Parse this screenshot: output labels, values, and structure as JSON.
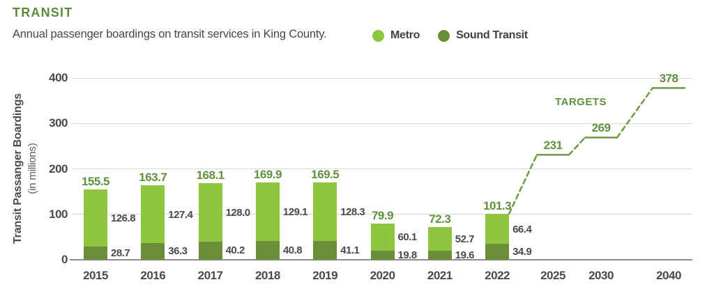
{
  "header": {
    "title": "TRANSIT",
    "subtitle": "Annual passenger boardings on transit services in King County."
  },
  "chart_data": {
    "type": "bar",
    "stacked": true,
    "categories": [
      "2015",
      "2016",
      "2017",
      "2018",
      "2019",
      "2020",
      "2021",
      "2022"
    ],
    "series": [
      {
        "name": "Metro",
        "color": "#8DC63F",
        "values": [
          126.8,
          127.4,
          128.0,
          129.1,
          128.3,
          60.1,
          52.7,
          66.4
        ]
      },
      {
        "name": "Sound Transit",
        "color": "#6B8E3B",
        "values": [
          28.7,
          36.3,
          40.2,
          40.8,
          41.1,
          19.8,
          19.6,
          34.9
        ]
      }
    ],
    "stack_order_bottom_to_top": [
      "Sound Transit",
      "Metro"
    ],
    "totals": [
      155.5,
      163.7,
      168.1,
      169.9,
      169.5,
      79.9,
      72.3,
      101.3
    ],
    "targets": {
      "label": "TARGETS",
      "style": "dashed",
      "line_color": "#6A9A45",
      "points": [
        {
          "year": "2025",
          "value": 231
        },
        {
          "year": "2030",
          "value": 269
        },
        {
          "year": "2040",
          "value": 378
        }
      ]
    },
    "ylabel": "Transit Passanger Boardings",
    "ylabel_sub": "(in millions)",
    "yticks": [
      0,
      100,
      200,
      300,
      400
    ],
    "ylim": [
      0,
      400
    ],
    "grid": true,
    "legend_position": "top"
  },
  "colors": {
    "title_green": "#5D8A3E",
    "accent_green": "#619140",
    "metro_green": "#8DC63F",
    "sound_transit_green": "#6B8E3B",
    "target_line_green": "#6A9A45",
    "text_dark": "#4A4A4C",
    "gridline": "#D9D9D9",
    "axis_line": "#8A8C8F"
  }
}
